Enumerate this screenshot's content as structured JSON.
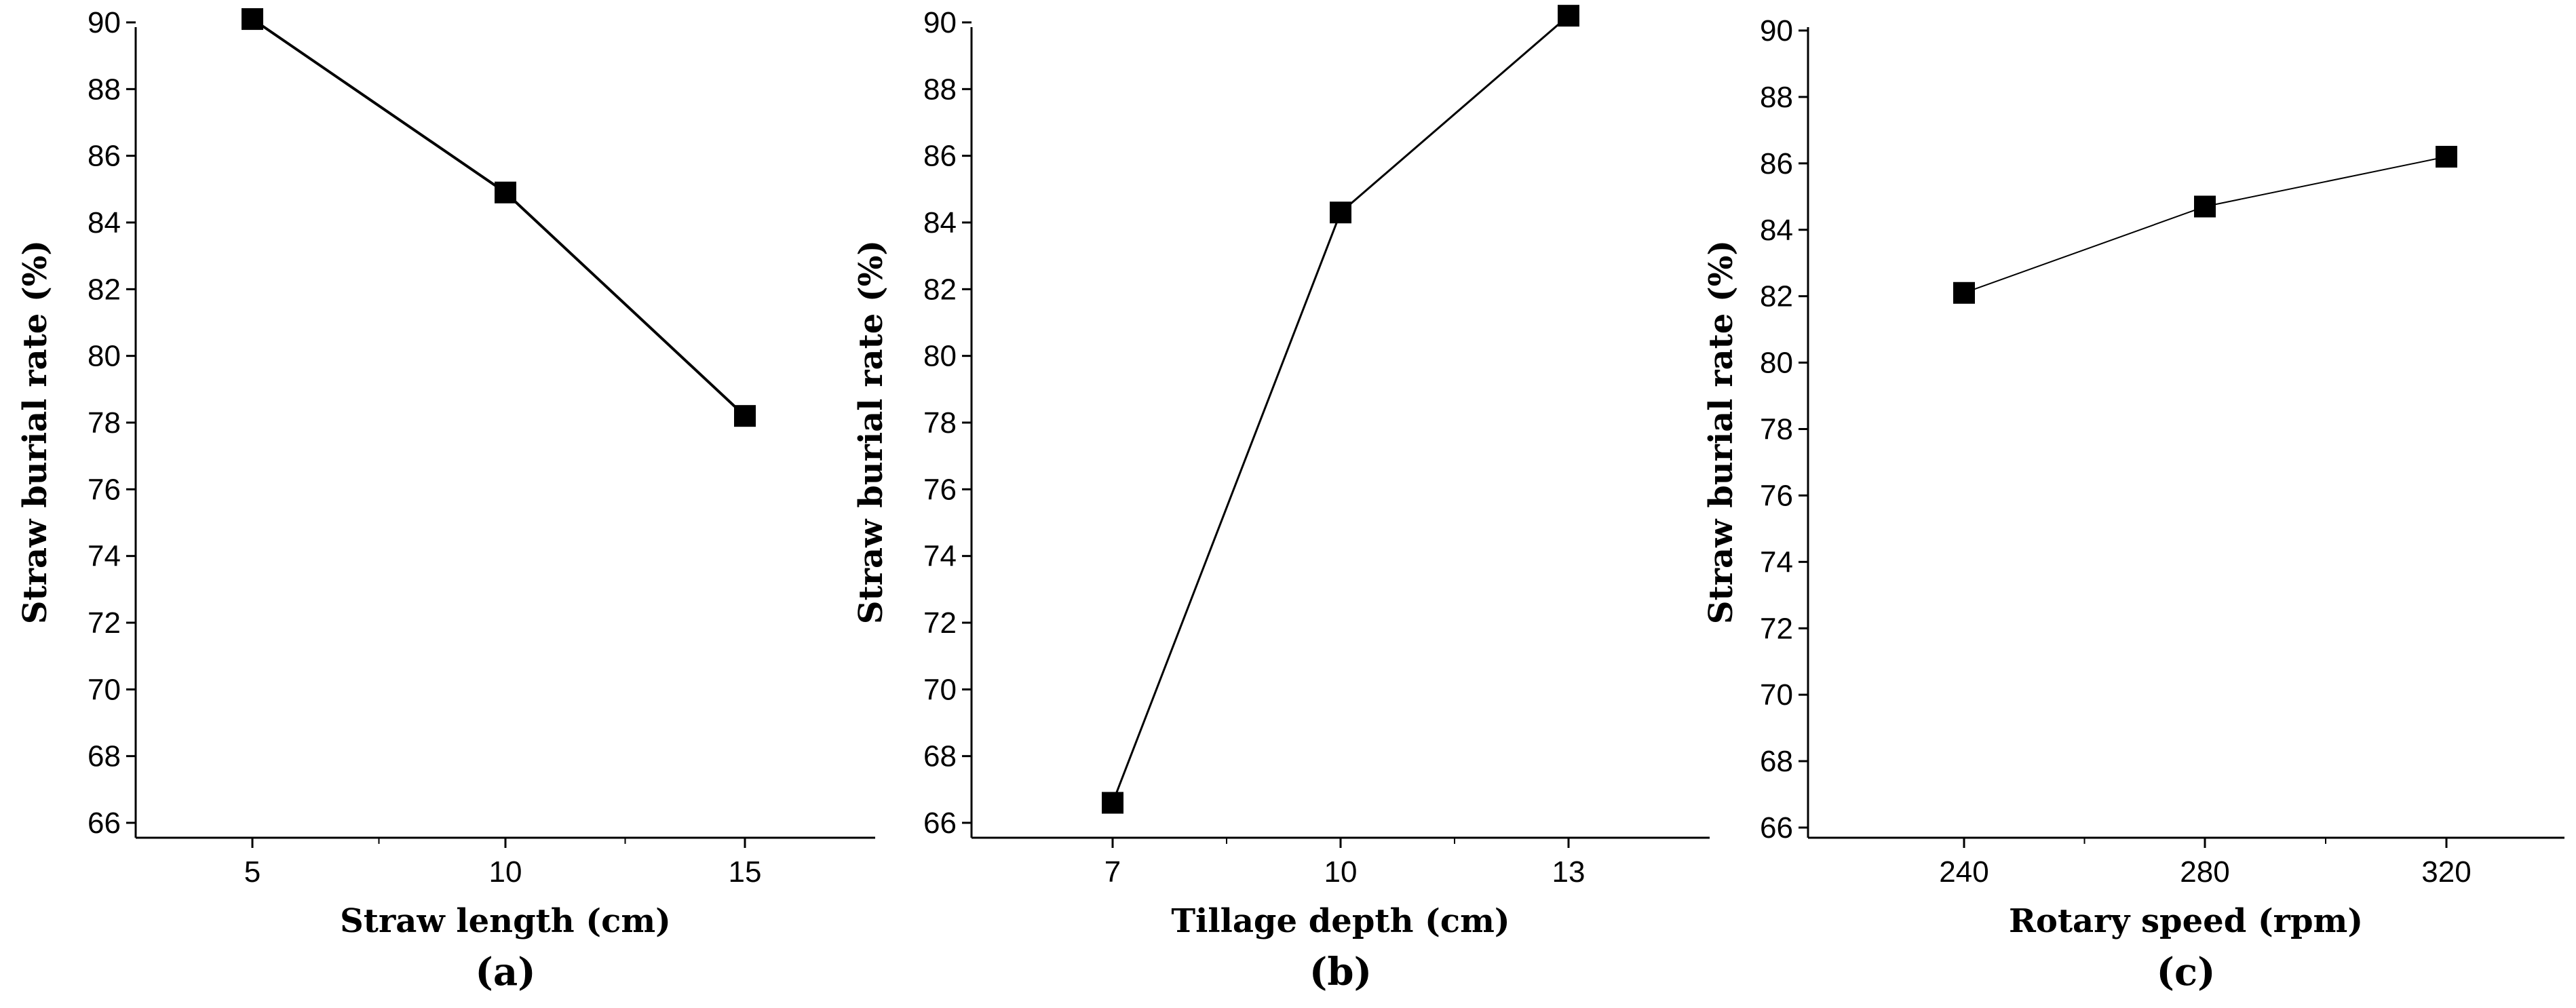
{
  "chart_data": [
    {
      "type": "line",
      "panel_label": "(a)",
      "xlabel": "Straw length (cm)",
      "ylabel": "Straw burial rate (%)",
      "categories": [
        "5",
        "10",
        "15"
      ],
      "series": [
        {
          "name": "Straw burial rate",
          "values": [
            90.1,
            84.9,
            78.2
          ]
        }
      ],
      "ylim": [
        66,
        90
      ],
      "yticks": [
        "66",
        "68",
        "70",
        "72",
        "74",
        "76",
        "78",
        "80",
        "82",
        "84",
        "86",
        "88",
        "90"
      ],
      "grid": false,
      "marker": "square"
    },
    {
      "type": "line",
      "panel_label": "(b)",
      "xlabel": "Tillage depth (cm)",
      "ylabel": "Straw burial rate (%)",
      "categories": [
        "7",
        "10",
        "13"
      ],
      "series": [
        {
          "name": "Straw burial rate",
          "values": [
            66.6,
            84.3,
            90.2
          ]
        }
      ],
      "ylim": [
        66,
        90
      ],
      "yticks": [
        "66",
        "68",
        "70",
        "72",
        "74",
        "76",
        "78",
        "80",
        "82",
        "84",
        "86",
        "88",
        "90"
      ],
      "grid": false,
      "marker": "square"
    },
    {
      "type": "line",
      "panel_label": "(c)",
      "xlabel": "Rotary speed (rpm)",
      "ylabel": "Straw burial rate (%)",
      "categories": [
        "240",
        "280",
        "320"
      ],
      "series": [
        {
          "name": "Straw burial rate",
          "values": [
            82.1,
            84.7,
            86.2
          ]
        }
      ],
      "ylim": [
        66,
        90
      ],
      "yticks": [
        "66",
        "68",
        "70",
        "72",
        "74",
        "76",
        "78",
        "80",
        "82",
        "84",
        "86",
        "88",
        "90"
      ],
      "grid": false,
      "marker": "square"
    }
  ]
}
